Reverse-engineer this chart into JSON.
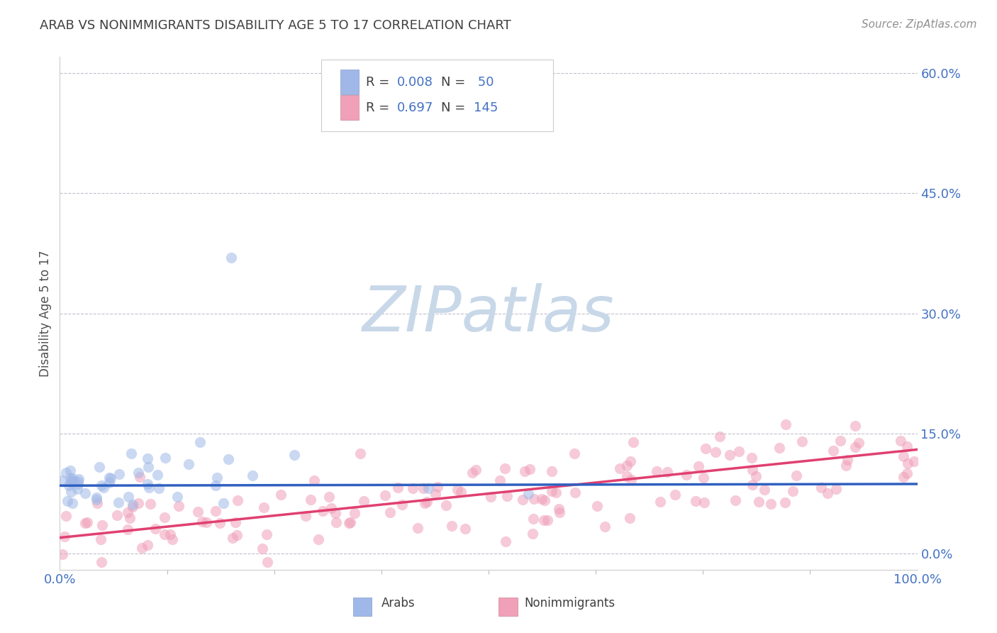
{
  "title": "ARAB VS NONIMMIGRANTS DISABILITY AGE 5 TO 17 CORRELATION CHART",
  "source": "Source: ZipAtlas.com",
  "ylabel": "Disability Age 5 to 17",
  "xlim": [
    0,
    100
  ],
  "ylim": [
    -2,
    62
  ],
  "yticks": [
    0,
    15,
    30,
    45,
    60
  ],
  "ytick_labels": [
    "0.0%",
    "15.0%",
    "30.0%",
    "45.0%",
    "60.0%"
  ],
  "xticks": [
    0,
    100
  ],
  "xtick_labels": [
    "0.0%",
    "100.0%"
  ],
  "arab_R": "0.008",
  "arab_N": "50",
  "nonimm_R": "0.697",
  "nonimm_N": "145",
  "arab_color": "#a0b8e8",
  "nonimm_color": "#f0a0b8",
  "arab_line_color": "#3060c0",
  "nonimm_line_color": "#e04070",
  "title_color": "#404040",
  "source_color": "#909090",
  "axis_label_color": "#505050",
  "tick_color": "#4472c4",
  "grid_color": "#c0c0cc",
  "watermark_color": "#c8d8e8",
  "background_color": "#ffffff",
  "arab_line_y0": 8.5,
  "arab_line_y1": 8.7,
  "nonimm_line_y0": 2.0,
  "nonimm_line_y1": 13.0
}
